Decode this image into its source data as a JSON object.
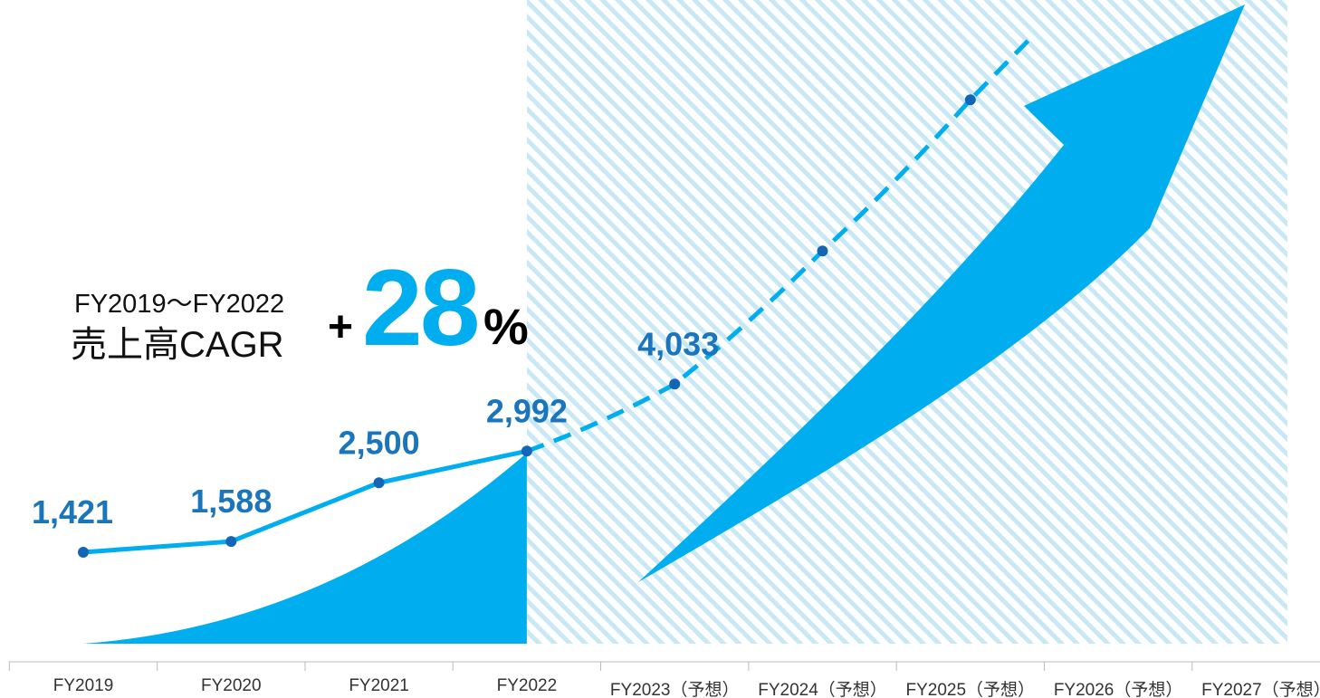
{
  "chart_data": {
    "type": "area",
    "categories": [
      "FY2019",
      "FY2020",
      "FY2021",
      "FY2022",
      "FY2023（予想）",
      "FY2024（予想）",
      "FY2025（予想）",
      "FY2026（予想）",
      "FY2027（予想）"
    ],
    "series": [
      {
        "values": [
          1421,
          1588,
          2500,
          2992,
          null,
          null,
          null,
          null,
          null
        ]
      },
      {
        "values": [
          null,
          null,
          null,
          2992,
          4033,
          6100,
          8450,
          null,
          null
        ]
      }
    ],
    "data_labels": [
      "1,421",
      "1,588",
      "2,500",
      "2,992",
      "4,033"
    ],
    "projection_start_index": 4,
    "ylim": [
      0,
      10000
    ],
    "grid": false
  },
  "cagr": {
    "period": "FY2019〜FY2022",
    "label": "売上高CAGR",
    "plus": "+",
    "value": "28",
    "unit": "%"
  },
  "colors": {
    "primary": "#00AEEF",
    "label": "#1B75BC",
    "marker": "#1565B7",
    "hatch": "#C9E8F6",
    "axis": "#BBBBBB",
    "tick_text": "#333333"
  }
}
